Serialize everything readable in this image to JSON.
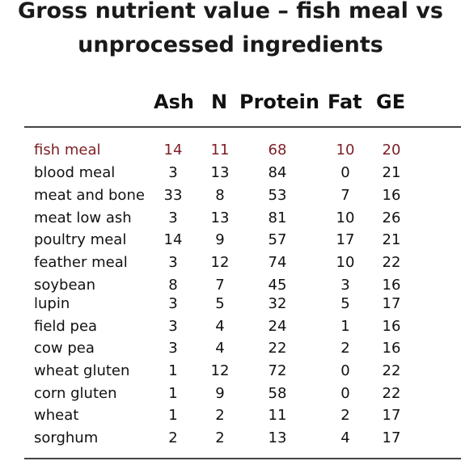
{
  "title": {
    "line1": "Gross nutrient value – fish meal vs",
    "line2": "unprocessed ingredients"
  },
  "columns": [
    "Ash",
    "N",
    "Protein",
    "Fat",
    "GE"
  ],
  "colors": {
    "highlight": "#7b1f24",
    "text": "#111111"
  },
  "rows": [
    {
      "name": "fish meal",
      "ash": "14",
      "n": "11",
      "protein": "68",
      "fat": "10",
      "ge": "20",
      "highlight": true
    },
    {
      "name": "blood meal",
      "ash": "3",
      "n": "13",
      "protein": "84",
      "fat": "0",
      "ge": "21"
    },
    {
      "name": "meat and bone",
      "ash": "33",
      "n": "8",
      "protein": "53",
      "fat": "7",
      "ge": "16"
    },
    {
      "name": "meat low ash",
      "ash": "3",
      "n": "13",
      "protein": "81",
      "fat": "10",
      "ge": "26"
    },
    {
      "name": "poultry meal",
      "ash": "14",
      "n": "9",
      "protein": "57",
      "fat": "17",
      "ge": "21"
    },
    {
      "name": "feather meal",
      "ash": "3",
      "n": "12",
      "protein": "74",
      "fat": "10",
      "ge": "22"
    },
    {
      "name": "soybean",
      "ash": "8",
      "n": "7",
      "protein": "45",
      "fat": "3",
      "ge": "16"
    },
    {
      "name": "lupin",
      "ash": "3",
      "n": "5",
      "protein": "32",
      "fat": "5",
      "ge": "17"
    },
    {
      "name": "field pea",
      "ash": "3",
      "n": "4",
      "protein": "24",
      "fat": "1",
      "ge": "16"
    },
    {
      "name": "cow pea",
      "ash": "3",
      "n": "4",
      "protein": "22",
      "fat": "2",
      "ge": "16"
    },
    {
      "name": "wheat gluten",
      "ash": "1",
      "n": "12",
      "protein": "72",
      "fat": "0",
      "ge": "22"
    },
    {
      "name": "corn gluten",
      "ash": "1",
      "n": "9",
      "protein": "58",
      "fat": "0",
      "ge": "22"
    },
    {
      "name": "wheat",
      "ash": "1",
      "n": "2",
      "protein": "11",
      "fat": "2",
      "ge": "17"
    },
    {
      "name": "sorghum",
      "ash": "2",
      "n": "2",
      "protein": "13",
      "fat": "4",
      "ge": "17"
    }
  ]
}
